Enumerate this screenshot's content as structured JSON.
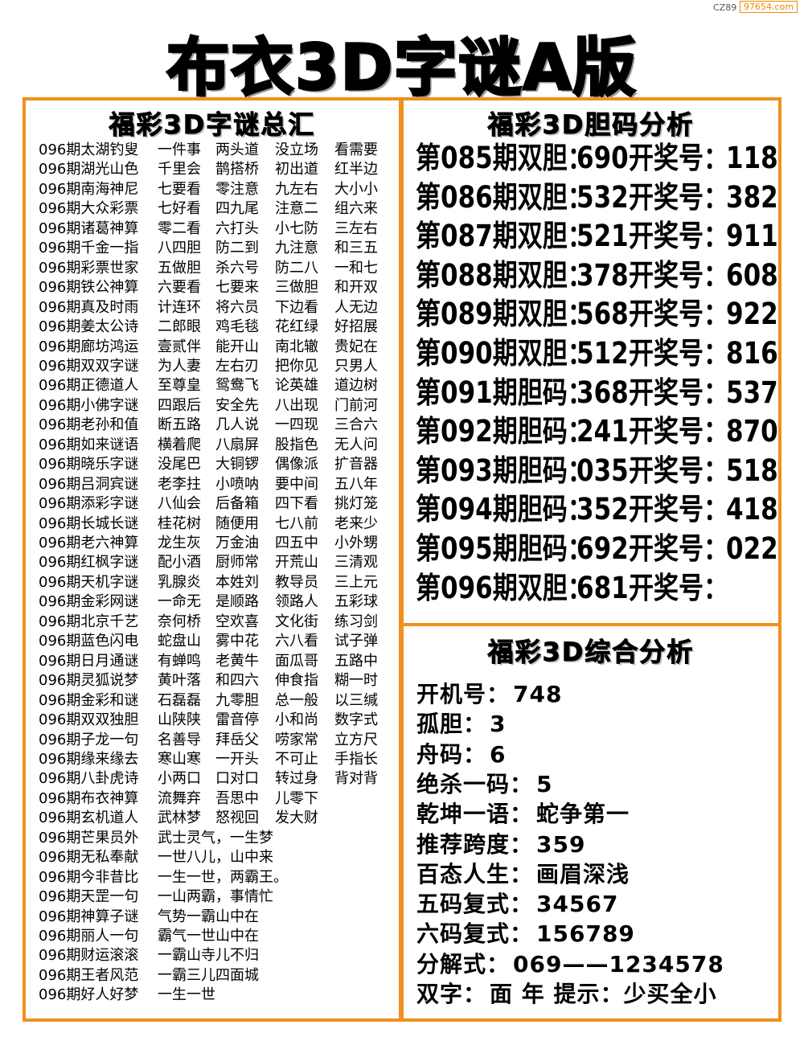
{
  "watermark": {
    "code": "CZ89",
    "site": "97654.com"
  },
  "title": "布衣3D字谜A版",
  "riddles": {
    "title": "福彩3D字谜总汇",
    "rows": [
      [
        "096期太湖钓叟",
        "一件事",
        "两头道",
        "没立场",
        "看需要"
      ],
      [
        "096期湖光山色",
        "千里会",
        "鹊搭桥",
        "初出道",
        "红半边"
      ],
      [
        "096期南海神尼",
        "七要看",
        "零注意",
        "九左右",
        "大小小"
      ],
      [
        "096期大众彩票",
        "七好看",
        "四九尾",
        "注意二",
        "组六来"
      ],
      [
        "096期诸葛神算",
        "零二看",
        "六打头",
        "小七防",
        "三左右"
      ],
      [
        "096期千金一指",
        "八四胆",
        "防二到",
        "九注意",
        "和三五"
      ],
      [
        "096期彩票世家",
        "五做胆",
        "杀六号",
        "防二八",
        "一和七"
      ],
      [
        "096期铁公神算",
        "六要看",
        "七要来",
        "三做胆",
        "和开双"
      ],
      [
        "096期真及时雨",
        "计连环",
        "将六员",
        "下边看",
        "人无边"
      ],
      [
        "096期姜太公诗",
        "二郎眼",
        "鸡毛毯",
        "花红绿",
        "好招展"
      ],
      [
        "096期廊坊鸿运",
        "壹贰伴",
        "能开山",
        "南北辙",
        "贵妃在"
      ],
      [
        "096期双双字谜",
        "为人妻",
        "左右刃",
        "把你见",
        "只男人"
      ],
      [
        "096期正德道人",
        "至尊皇",
        "鸳鸯飞",
        "论英雄",
        "道边树"
      ],
      [
        "096期小佛字谜",
        "四跟后",
        "安全先",
        "八出现",
        "门前河"
      ],
      [
        "096期老孙和值",
        "断五路",
        "几人说",
        "一四现",
        "三合六"
      ],
      [
        "096期如来谜语",
        "横着爬",
        "八扇屏",
        "股指色",
        "无人问"
      ],
      [
        "096期晓乐字谜",
        "没尾巴",
        "大铜锣",
        "偶像派",
        "扩音器"
      ],
      [
        "096期吕洞宾谜",
        "老李拄",
        "小喷呐",
        "要中间",
        "五八年"
      ],
      [
        "096期添彩字谜",
        "八仙会",
        "后备箱",
        "四下看",
        "挑灯笼"
      ],
      [
        "096期长城长谜",
        "桂花树",
        "随便用",
        "七八前",
        "老来少"
      ],
      [
        "096期老六神算",
        "龙生灰",
        "万金油",
        "四五中",
        "小外甥"
      ],
      [
        "096期红枫字谜",
        "配小酒",
        "厨师常",
        "开荒山",
        "三清观"
      ],
      [
        "096期天机字谜",
        "乳腺炎",
        "本姓刘",
        "教导员",
        "三上元"
      ],
      [
        "096期金彩网谜",
        "一命无",
        "是顺路",
        "领路人",
        "五彩球"
      ],
      [
        "096期北京千艺",
        "奈何桥",
        "空欢喜",
        "文化街",
        "练习剑"
      ],
      [
        "096期蓝色闪电",
        "蛇盘山",
        "雾中花",
        "六八看",
        "试子弹"
      ],
      [
        "096期日月通谜",
        "有蝉鸣",
        "老黄牛",
        "面瓜哥",
        "五路中"
      ],
      [
        "096期灵狐说梦",
        "黄叶落",
        "和四六",
        "伸食指",
        "糊一时"
      ],
      [
        "096期金彩和谜",
        "石磊磊",
        "九零胆",
        "总一般",
        "以三缄"
      ],
      [
        "096期双双独胆",
        "山陕陕",
        "雷音停",
        "小和尚",
        "数字式"
      ],
      [
        "096期子龙一句",
        "名善导",
        "拜岳父",
        "唠家常",
        "立方尺"
      ],
      [
        "096期缘来缘去",
        "寒山寒",
        "一开头",
        "不可止",
        "手指长"
      ],
      [
        "096期八卦虎诗",
        "小两口",
        "口对口",
        "转过身",
        "背对背"
      ],
      [
        "096期布衣神算",
        "流舞弃",
        "吾思中",
        "儿零下"
      ],
      [
        "096期玄机道人",
        "武林梦",
        "怒视回",
        "发大财"
      ],
      [
        "096期芒果员外",
        "武士灵气，一生梦"
      ],
      [
        "096期无私奉献",
        "一世八儿，山中来"
      ],
      [
        "096期今非昔比",
        "一生一世，两霸王。"
      ],
      [
        "096期天罡一句",
        "一山两霸，事情忙"
      ],
      [
        "096期神算子谜",
        "气势一霸山中在"
      ],
      [
        "096期丽人一句",
        "霸气一世山中在"
      ],
      [
        "096期财运滚滚",
        "一霸山寺儿不归"
      ],
      [
        "096期王者风范",
        "一霸三儿四面城"
      ],
      [
        "096期好人好梦",
        "一生一世"
      ]
    ]
  },
  "bile": {
    "title": "福彩3D胆码分析",
    "rows": [
      {
        "label": "第085期双胆：",
        "value": "690",
        "prize_label": "开奖号：",
        "prize": "118"
      },
      {
        "label": "第086期双胆：",
        "value": "532",
        "prize_label": "开奖号：",
        "prize": "382"
      },
      {
        "label": "第087期双胆：",
        "value": "521",
        "prize_label": "开奖号：",
        "prize": "911"
      },
      {
        "label": "第088期双胆：",
        "value": "378",
        "prize_label": "开奖号：",
        "prize": "608"
      },
      {
        "label": "第089期双胆：",
        "value": "568",
        "prize_label": "开奖号：",
        "prize": "922"
      },
      {
        "label": "第090期双胆：",
        "value": "512",
        "prize_label": "开奖号：",
        "prize": "816"
      },
      {
        "label": "第091期胆码：",
        "value": "368",
        "prize_label": "开奖号：",
        "prize": "537"
      },
      {
        "label": "第092期胆码：",
        "value": "241",
        "prize_label": "开奖号：",
        "prize": "870"
      },
      {
        "label": "第093期胆码：",
        "value": "035",
        "prize_label": "开奖号：",
        "prize": "518"
      },
      {
        "label": "第094期胆码：",
        "value": "352",
        "prize_label": "开奖号：",
        "prize": "418"
      },
      {
        "label": "第095期胆码：",
        "value": "692",
        "prize_label": "开奖号：",
        "prize": "022"
      },
      {
        "label": "第096期双胆：",
        "value": "681",
        "prize_label": "开奖号："
      }
    ]
  },
  "summary": {
    "title": "福彩3D综合分析",
    "rows": [
      {
        "label": "开机号：",
        "value": "748"
      },
      {
        "label": "孤胆：",
        "value": "3"
      },
      {
        "label": "舟码：",
        "value": "6"
      },
      {
        "label": "绝杀一码：",
        "value": "5"
      },
      {
        "label": "乾坤一语：",
        "value": "蛇争第一"
      },
      {
        "label": "推荐跨度：",
        "value": "359"
      },
      {
        "label": "百态人生：",
        "value": "画眉深浅"
      },
      {
        "label": "五码复式：",
        "value": "34567"
      },
      {
        "label": "六码复式：",
        "value": "156789"
      },
      {
        "label": "分解式：",
        "value": "069——1234578"
      },
      {
        "label": "双字：",
        "value": "面 年 提示：少买全小"
      }
    ]
  }
}
